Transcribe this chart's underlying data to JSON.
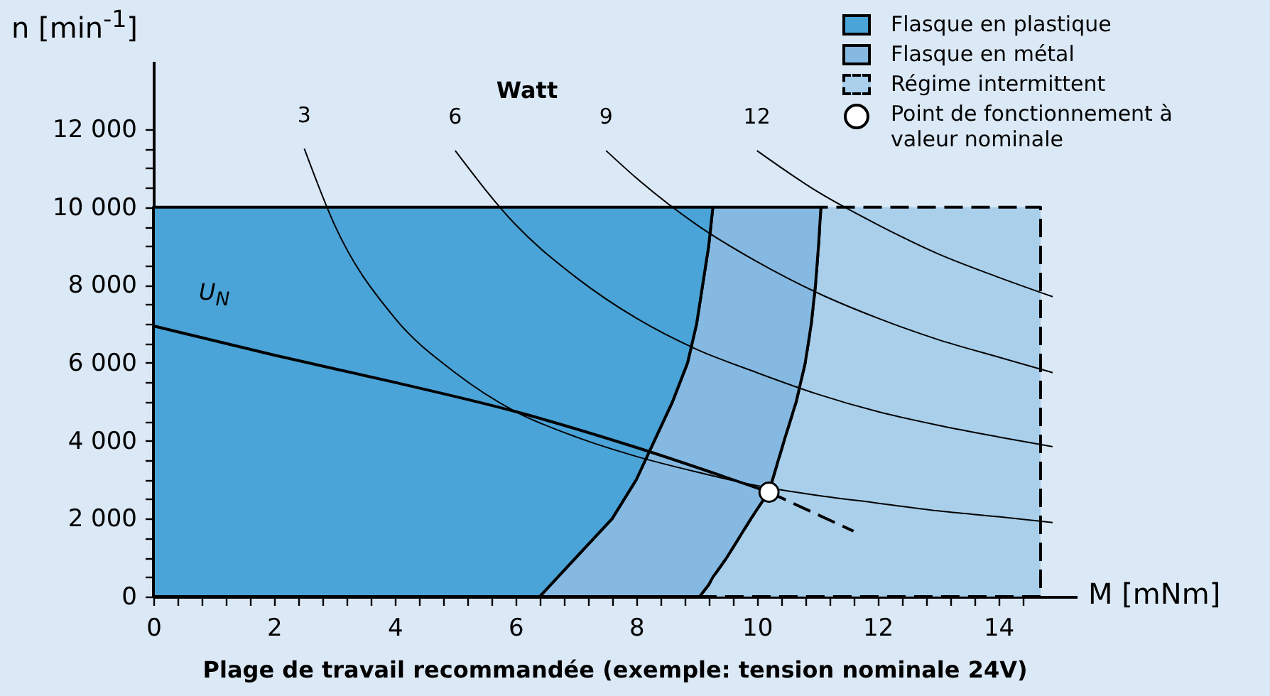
{
  "chart_data": {
    "type": "area",
    "stacked": true,
    "title": "Plage de travail recommandée (exemple: tension nominale 24V)",
    "xlabel": "M [mNm]",
    "ylabel": "n [min$^{-1}$]",
    "annotations": [
      "Watt"
    ],
    "xlim": [
      0,
      15.3
    ],
    "ylim": [
      0,
      13750
    ],
    "xticks": [
      0,
      2,
      4,
      6,
      8,
      10,
      12,
      14,
      {
        "value": 0.4,
        "label": null
      },
      {
        "value": 0.8,
        "label": null
      },
      {
        "value": 1.2,
        "label": null
      },
      {
        "value": 1.6,
        "label": null
      },
      {
        "value": 2.4,
        "label": null
      },
      {
        "value": 2.8,
        "label": null
      },
      {
        "value": 3.2,
        "label": null
      },
      {
        "value": 3.6,
        "label": null
      },
      {
        "value": 4.4,
        "label": null
      },
      {
        "value": 4.8,
        "label": null
      },
      {
        "value": 5.2,
        "label": null
      },
      {
        "value": 5.6,
        "label": null
      },
      {
        "value": 6.4,
        "label": null
      },
      {
        "value": 6.8,
        "label": null
      },
      {
        "value": 7.2,
        "label": null
      },
      {
        "value": 7.6,
        "label": null
      },
      {
        "value": 8.4,
        "label": null
      },
      {
        "value": 8.8,
        "label": null
      },
      {
        "value": 9.2,
        "label": null
      },
      {
        "value": 9.6,
        "label": null
      },
      {
        "value": 10.4,
        "label": null
      },
      {
        "value": 10.8,
        "label": null
      },
      {
        "value": 11.2,
        "label": null
      },
      {
        "value": 11.6,
        "label": null
      },
      {
        "value": 12.4,
        "label": null
      },
      {
        "value": 12.8,
        "label": null
      },
      {
        "value": 13.2,
        "label": null
      },
      {
        "value": 13.6,
        "label": null
      },
      {
        "value": 14.4,
        "label": null
      }
    ],
    "yticks": [
      0,
      {
        "value": 2000,
        "label": "2 000"
      },
      {
        "value": 4000,
        "label": "4 000"
      },
      {
        "value": 6000,
        "label": "6 000"
      },
      {
        "value": 8000,
        "label": "8 000"
      },
      {
        "value": 10000,
        "label": "10 000"
      },
      {
        "value": 12000,
        "label": "12 000"
      },
      {
        "value": 500,
        "label": null
      },
      {
        "value": 1000,
        "label": null
      },
      {
        "value": 1500,
        "label": null
      },
      {
        "value": 2500,
        "label": null
      },
      {
        "value": 3000,
        "label": null
      },
      {
        "value": 3500,
        "label": null
      },
      {
        "value": 4500,
        "label": null
      },
      {
        "value": 5000,
        "label": null
      },
      {
        "value": 5500,
        "label": null
      },
      {
        "value": 6500,
        "label": null
      },
      {
        "value": 7000,
        "label": null
      },
      {
        "value": 7500,
        "label": null
      },
      {
        "value": 8500,
        "label": null
      },
      {
        "value": 9000,
        "label": null
      },
      {
        "value": 9500,
        "label": null
      },
      {
        "value": 10500,
        "label": null
      },
      {
        "value": 11000,
        "label": null
      },
      {
        "value": 11500,
        "label": null
      }
    ],
    "legend": "top right",
    "x": [
      0,
      6.4,
      7.0,
      7.6,
      8.0,
      8.3,
      8.6,
      8.85,
      9.0,
      9.05,
      9.1,
      9.2,
      9.27,
      9.5,
      9.9,
      10.2,
      10.45,
      10.65,
      10.8,
      10.9,
      10.97,
      11.02,
      11.06,
      14.7
    ],
    "series": [
      {
        "name": "Régime intermittent",
        "color": "#a9cfeb",
        "line_style": "dashed",
        "values": [
          null,
          null,
          null,
          null,
          null,
          null,
          null,
          null,
          null,
          0,
          100,
          300,
          500,
          1000,
          2000,
          2700,
          4000,
          5000,
          6000,
          7000,
          8000,
          9000,
          10000,
          10000
        ]
      },
      {
        "name": "Flasque en métal",
        "color": "#85b9e1",
        "values": [
          null,
          0,
          1000,
          2000,
          3000,
          4000,
          5000,
          6000,
          7000,
          7500,
          7900,
          8700,
          9500,
          9000,
          8000,
          7300,
          6000,
          5000,
          4000,
          3000,
          2000,
          1000,
          0,
          null
        ]
      },
      {
        "name": "Flasque en plastique",
        "color": "#4aa4d8",
        "values": [
          10000,
          10000,
          9000,
          8000,
          7000,
          6000,
          5000,
          4000,
          3000,
          2500,
          2000,
          1000,
          0,
          null,
          null,
          null,
          null,
          null,
          null,
          null,
          null,
          null,
          null,
          null
        ]
      },
      {
        "type": "line",
        "name": "3",
        "color": "#000000",
        "x": [
          2.5,
          3,
          4,
          5,
          6,
          7,
          8,
          9,
          10,
          11,
          12,
          13,
          14,
          14.9
        ],
        "values": [
          11500,
          9550,
          7150,
          5750,
          4750,
          4100,
          3600,
          3200,
          2850,
          2600,
          2400,
          2200,
          2050,
          1900
        ]
      },
      {
        "type": "line",
        "name": "6",
        "color": "#000000",
        "x": [
          5,
          6,
          7,
          8,
          9,
          10,
          11,
          12,
          13,
          14,
          14.9
        ],
        "values": [
          11450,
          9550,
          8200,
          7150,
          6350,
          5750,
          5200,
          4750,
          4400,
          4100,
          3850
        ]
      },
      {
        "type": "line",
        "name": "9",
        "color": "#000000",
        "x": [
          7.5,
          8,
          9,
          10,
          11,
          12,
          13,
          14,
          14.9
        ],
        "values": [
          11450,
          10750,
          9550,
          8600,
          7800,
          7150,
          6600,
          6150,
          5750
        ]
      },
      {
        "type": "line",
        "name": "12",
        "color": "#000000",
        "x": [
          10,
          11,
          12,
          13,
          14,
          14.9
        ],
        "values": [
          11450,
          10400,
          9550,
          8800,
          8200,
          7700
        ]
      },
      {
        "type": "line",
        "name": "U$_{N}$",
        "color": "#000000",
        "x": [
          0,
          2,
          4,
          6,
          8,
          10.2
        ],
        "values": [
          6950,
          6200,
          5500,
          4750,
          3830,
          2680
        ]
      },
      {
        "type": "line",
        "color": "#000000",
        "line_style": "dashed",
        "x": [
          10.2,
          11.6
        ],
        "values": [
          2680,
          1680
        ]
      },
      {
        "type": "scatter",
        "name": "Point de fonctionnement à valeur nominale",
        "color": "#ffffff",
        "marker": "circle",
        "x": [
          10.2
        ],
        "values": [
          2680
        ]
      }
    ]
  }
}
